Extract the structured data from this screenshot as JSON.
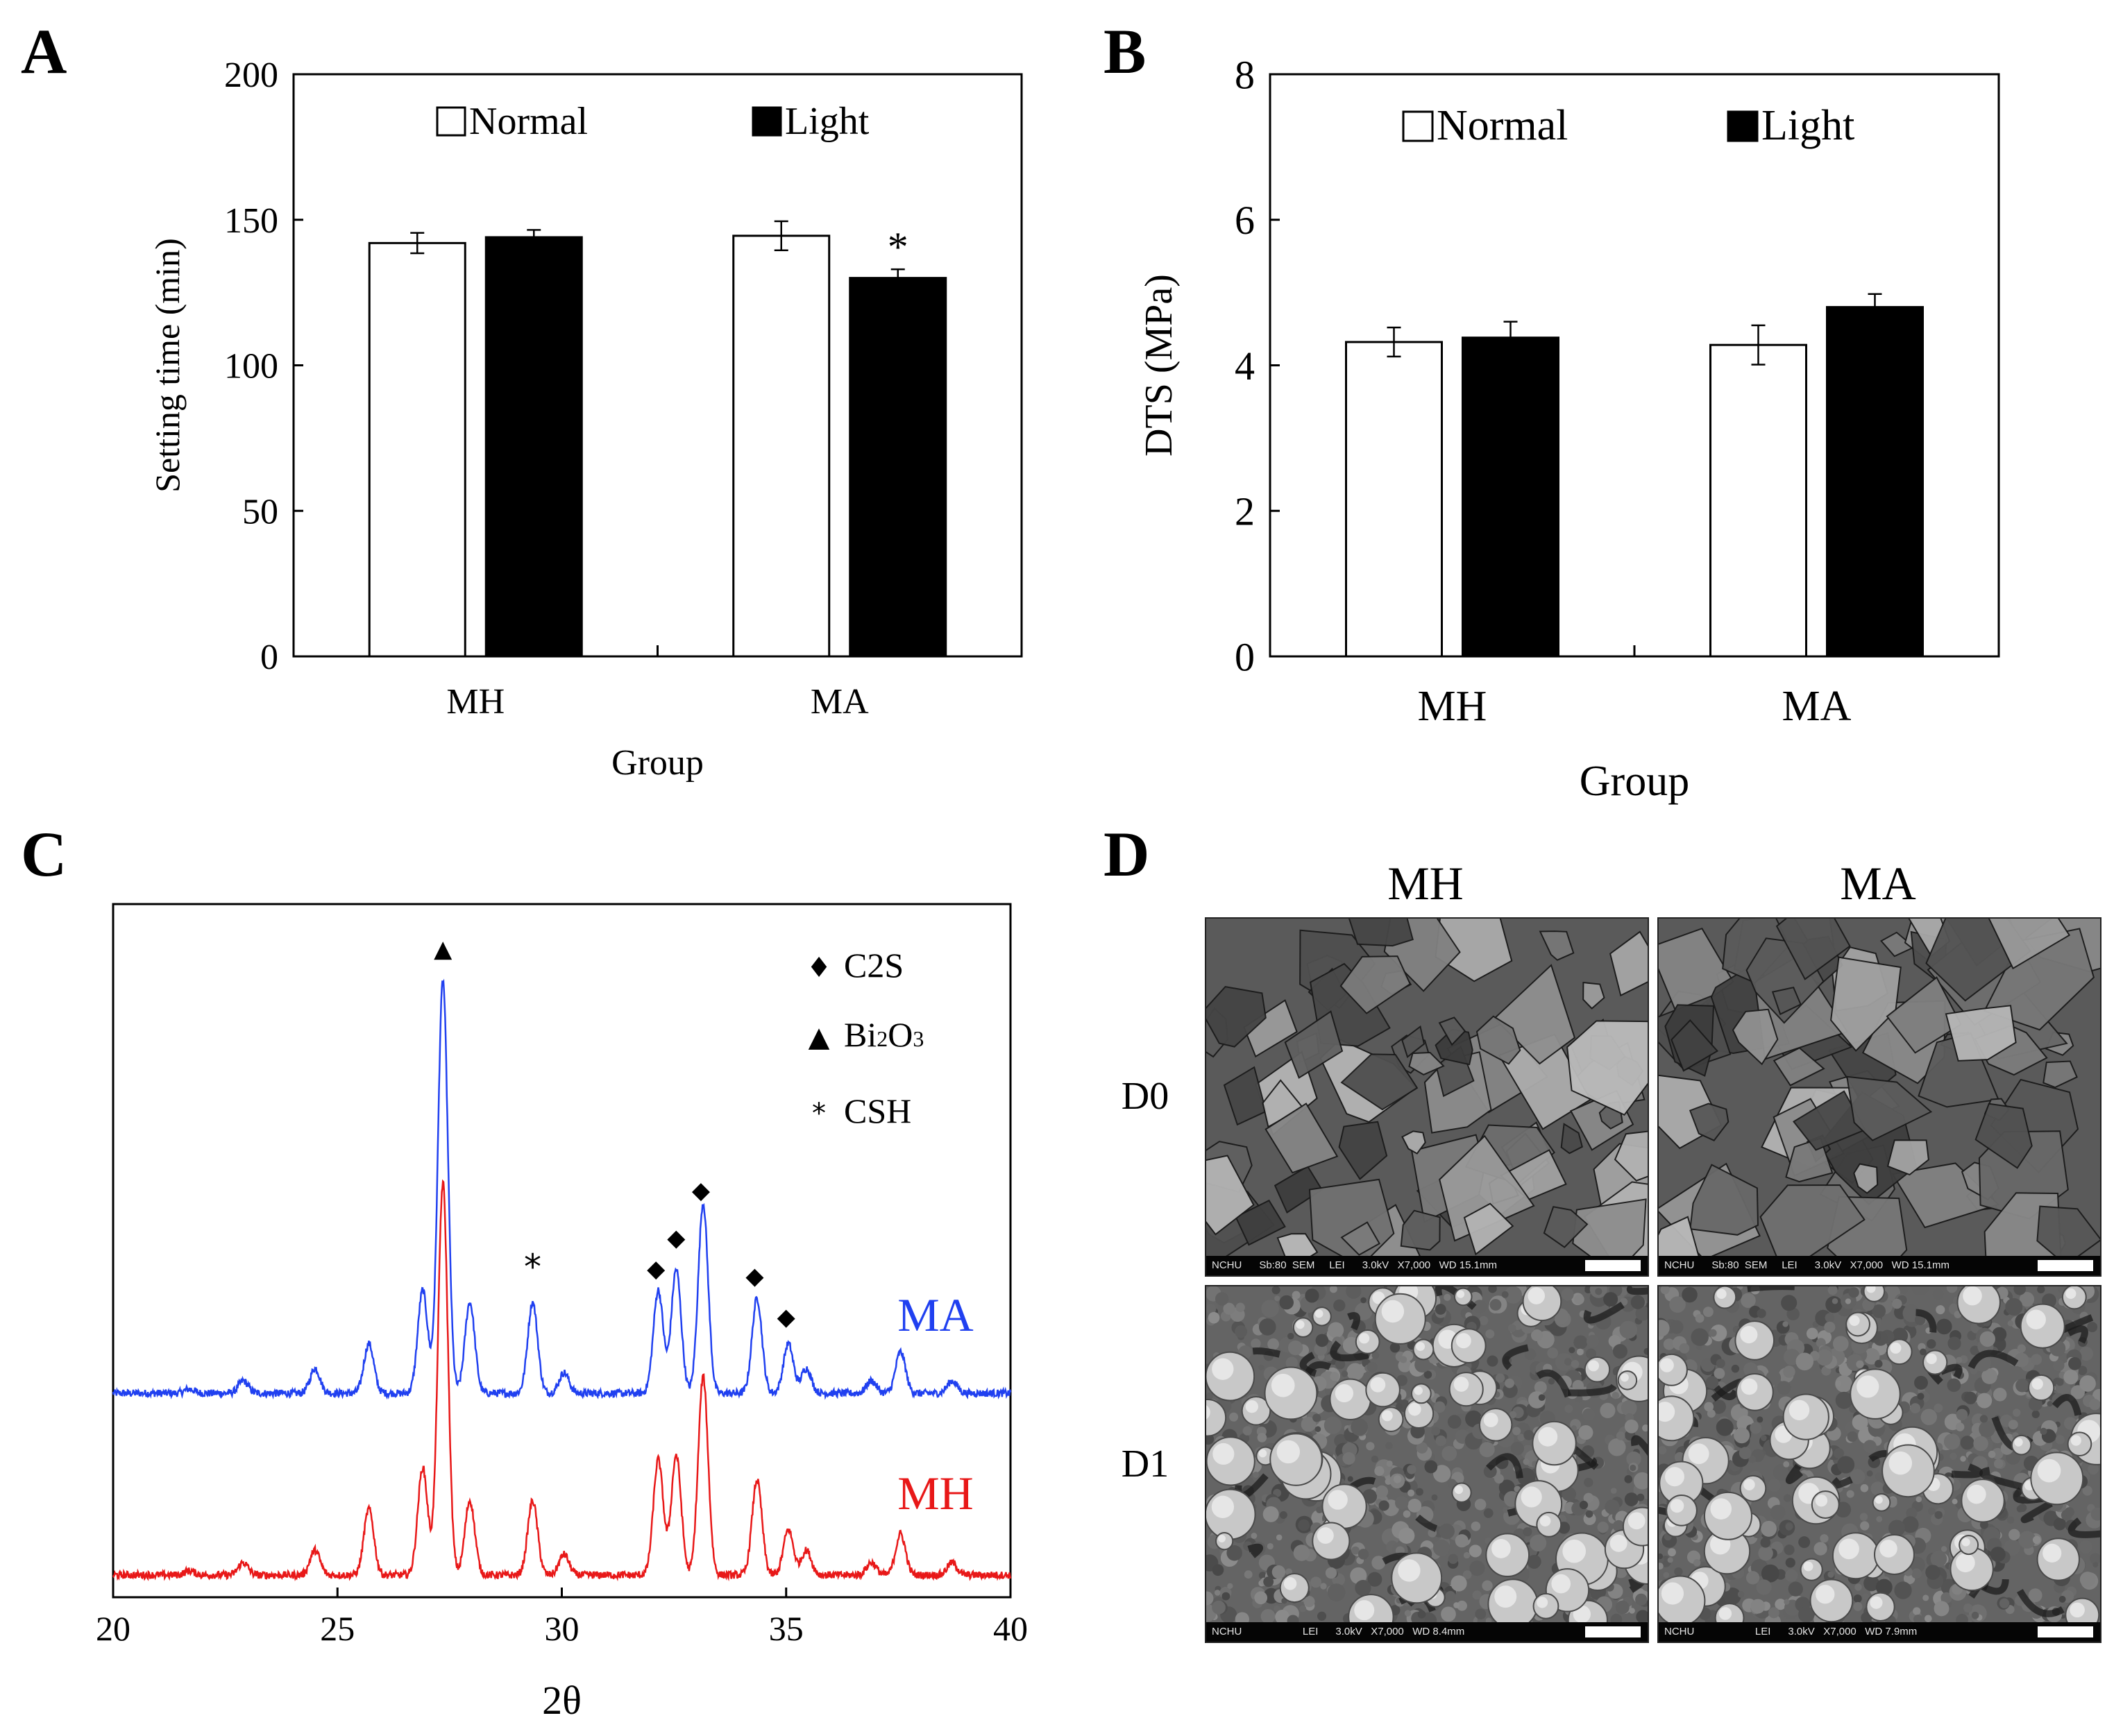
{
  "panels": {
    "A": {
      "letter": "A"
    },
    "B": {
      "letter": "B"
    },
    "C": {
      "letter": "C"
    },
    "D": {
      "letter": "D"
    }
  },
  "chart_data": [
    {
      "id": "A",
      "type": "bar",
      "title": "",
      "categories": [
        "MH",
        "MA"
      ],
      "series": [
        {
          "name": "Normal",
          "values": [
            142,
            144.5
          ],
          "errors": [
            3.5,
            5
          ],
          "color": "#ffffff"
        },
        {
          "name": "Light",
          "values": [
            144,
            130
          ],
          "errors": [
            2.5,
            3
          ],
          "color": "#000000"
        }
      ],
      "xlabel": "Group",
      "ylabel": "Setting time (min)",
      "ylim": [
        0,
        200
      ],
      "yticks": [
        0,
        50,
        100,
        150,
        200
      ],
      "annotations": [
        {
          "text": "*",
          "category": "MA",
          "series": "Light"
        }
      ],
      "legend_position": "top",
      "grid": false
    },
    {
      "id": "B",
      "type": "bar",
      "title": "",
      "categories": [
        "MH",
        "MA"
      ],
      "series": [
        {
          "name": "Normal",
          "values": [
            4.32,
            4.28
          ],
          "errors": [
            0.2,
            0.27
          ],
          "color": "#ffffff"
        },
        {
          "name": "Light",
          "values": [
            4.38,
            4.8
          ],
          "errors": [
            0.22,
            0.18
          ],
          "color": "#000000"
        }
      ],
      "xlabel": "Group",
      "ylabel": "DTS (MPa)",
      "ylim": [
        0,
        8
      ],
      "yticks": [
        0,
        2,
        4,
        6,
        8
      ],
      "legend_position": "top",
      "grid": false
    },
    {
      "id": "C",
      "type": "line",
      "title": "",
      "xlabel": "2θ",
      "ylabel": "",
      "xlim": [
        20,
        40
      ],
      "xticks": [
        20,
        25,
        30,
        35,
        40
      ],
      "series": [
        {
          "name": "MA",
          "color": "#2040f0",
          "baseline": 0.1,
          "peaks": [
            [
              21.7,
              0.01
            ],
            [
              22.9,
              0.03
            ],
            [
              24.5,
              0.06
            ],
            [
              25.7,
              0.12
            ],
            [
              26.9,
              0.25
            ],
            [
              27.35,
              1.0
            ],
            [
              27.95,
              0.22
            ],
            [
              29.35,
              0.22
            ],
            [
              30.05,
              0.05
            ],
            [
              32.15,
              0.25
            ],
            [
              32.55,
              0.3
            ],
            [
              33.15,
              0.46
            ],
            [
              34.35,
              0.23
            ],
            [
              35.05,
              0.12
            ],
            [
              35.45,
              0.06
            ],
            [
              36.9,
              0.03
            ],
            [
              37.55,
              0.1
            ],
            [
              38.7,
              0.03
            ]
          ]
        },
        {
          "name": "MH",
          "color": "#e81818",
          "baseline": 0.0,
          "peaks": [
            [
              21.7,
              0.01
            ],
            [
              22.9,
              0.03
            ],
            [
              24.5,
              0.06
            ],
            [
              25.7,
              0.16
            ],
            [
              26.9,
              0.26
            ],
            [
              27.35,
              0.95
            ],
            [
              27.95,
              0.18
            ],
            [
              29.35,
              0.18
            ],
            [
              30.05,
              0.05
            ],
            [
              32.15,
              0.28
            ],
            [
              32.55,
              0.29
            ],
            [
              33.15,
              0.48
            ],
            [
              34.35,
              0.23
            ],
            [
              35.05,
              0.11
            ],
            [
              35.45,
              0.06
            ],
            [
              36.9,
              0.03
            ],
            [
              37.55,
              0.1
            ],
            [
              38.7,
              0.03
            ]
          ]
        }
      ],
      "peak_markers": [
        {
          "symbol": "▲",
          "x": 27.35,
          "phase": "Bi2O3"
        },
        {
          "symbol": "*",
          "x": 29.35,
          "phase": "CSH"
        },
        {
          "symbol": "◆",
          "x": 32.1,
          "phase": "C2S"
        },
        {
          "symbol": "◆",
          "x": 32.55,
          "phase": "C2S"
        },
        {
          "symbol": "◆",
          "x": 33.1,
          "phase": "C2S"
        },
        {
          "symbol": "◆",
          "x": 34.3,
          "phase": "C2S"
        },
        {
          "symbol": "◆",
          "x": 35.0,
          "phase": "C2S"
        }
      ],
      "legend": [
        {
          "symbol": "♦",
          "label": "C2S",
          "label_main": "C2S",
          "sub": "",
          "tail": ""
        },
        {
          "symbol": "▲",
          "label": "Bi2O3",
          "label_main": "Bi",
          "sub": "2",
          "tail": "O",
          "sub2": "3"
        },
        {
          "symbol": "*",
          "label": "CSH",
          "label_main": "CSH",
          "sub": "",
          "tail": ""
        }
      ]
    }
  ],
  "panel_d": {
    "columns": [
      "MH",
      "MA"
    ],
    "rows": [
      "D0",
      "D1"
    ],
    "info_bars": {
      "D0_MH": "NCHU      Sb:80  SEM     LEI      3.0kV   X7,000   WD 15.1mm",
      "D0_MA": "NCHU      Sb:80  SEM     LEI      3.0kV   X7,000   WD 15.1mm",
      "D1_MH": "NCHU                     LEI      3.0kV   X7,000   WD 8.4mm",
      "D1_MA": "NCHU                     LEI      3.0kV   X7,000   WD 7.9mm"
    }
  }
}
